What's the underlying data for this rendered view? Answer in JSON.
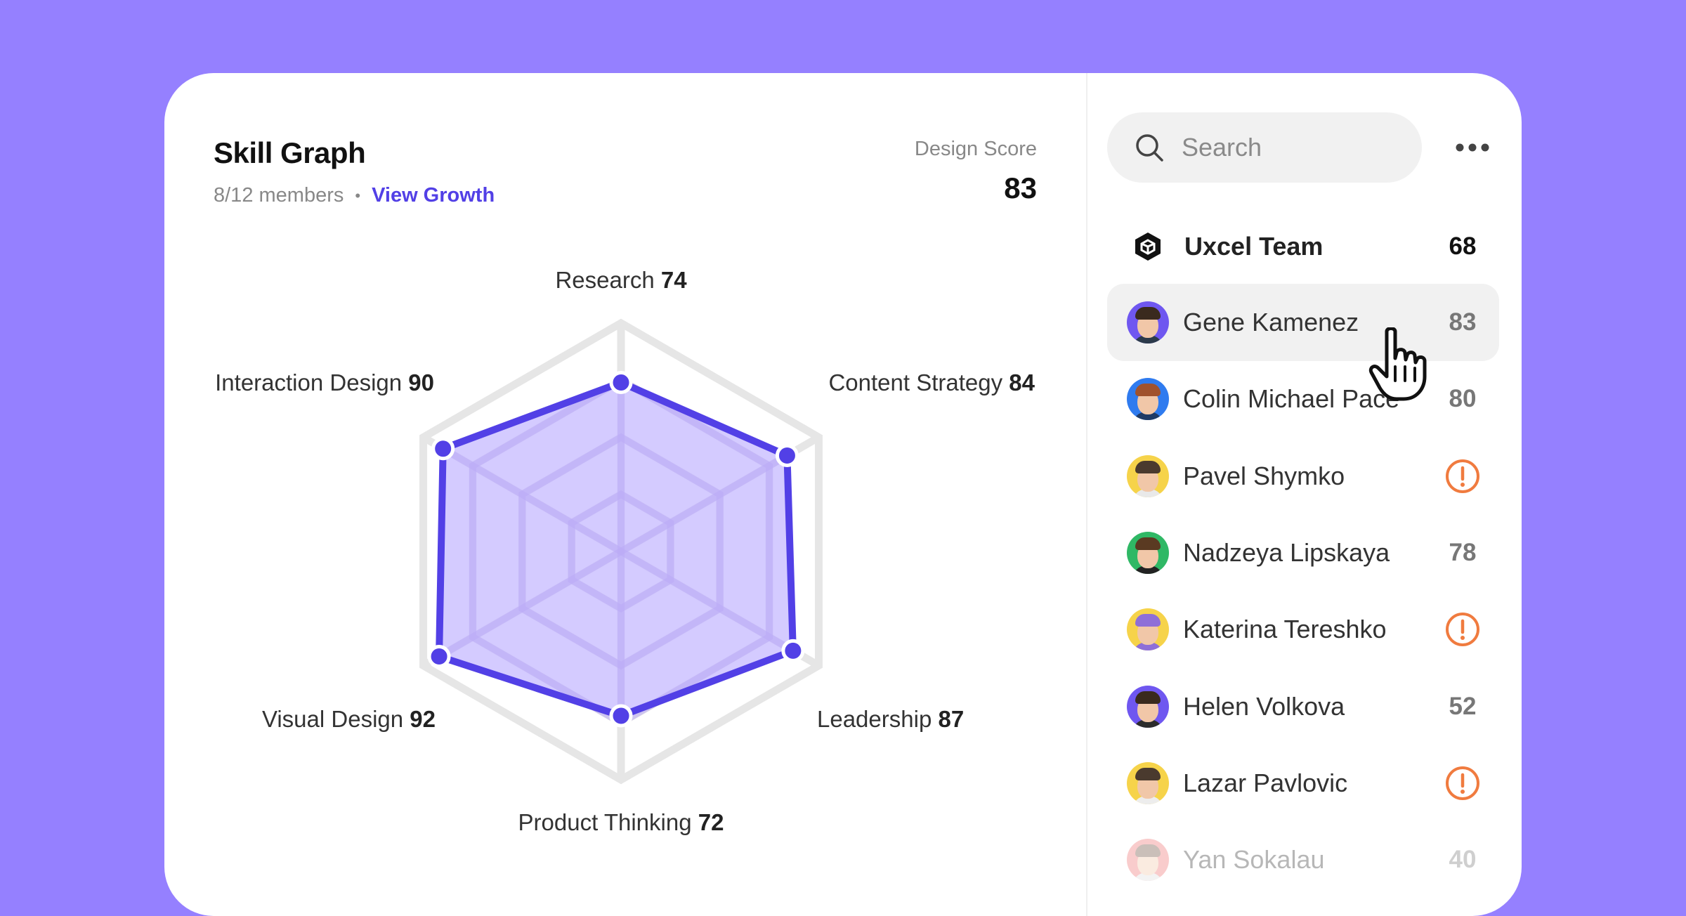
{
  "colors": {
    "background": "#9580FF",
    "accent": "#5240E6",
    "fill": "#C8BCFF",
    "grid": "#E6E6E6",
    "alert": "#F07B3F"
  },
  "header": {
    "title": "Skill Graph",
    "members": "8/12 members",
    "separator": "•",
    "link": "View Growth",
    "score_label": "Design Score",
    "score_value": "83"
  },
  "chart_data": {
    "type": "radar",
    "axes": [
      {
        "label": "Research",
        "value": 74
      },
      {
        "label": "Content Strategy",
        "value": 84
      },
      {
        "label": "Leadership",
        "value": 87
      },
      {
        "label": "Product Thinking",
        "value": 72
      },
      {
        "label": "Visual Design",
        "value": 92
      },
      {
        "label": "Interaction Design",
        "value": 90
      }
    ],
    "max": 100,
    "rings": 4
  },
  "search": {
    "placeholder": "Search",
    "icon": "search-icon"
  },
  "menu": {
    "icon": "more-dots-icon"
  },
  "team": {
    "name": "Uxcel Team",
    "score": "68",
    "icon": "uxcel-logo-icon"
  },
  "members": [
    {
      "name": "Gene Kamenez",
      "score": "83",
      "alert": false,
      "active": true,
      "faded": false,
      "bg": "#6F57F0",
      "hair": "#3A2A1E",
      "shirt": "#2C3A4A"
    },
    {
      "name": "Colin Michael Pace",
      "score": "80",
      "alert": false,
      "active": false,
      "faded": false,
      "bg": "#2F7BEF",
      "hair": "#A0522D",
      "shirt": "#1F3B66"
    },
    {
      "name": "Pavel Shymko",
      "score": "",
      "alert": true,
      "active": false,
      "faded": false,
      "bg": "#F6D34A",
      "hair": "#4A3A2E",
      "shirt": "#E9E9E9"
    },
    {
      "name": "Nadzeya Lipskaya",
      "score": "78",
      "alert": false,
      "active": false,
      "faded": false,
      "bg": "#2FB865",
      "hair": "#5A3A22",
      "shirt": "#222222"
    },
    {
      "name": "Katerina Tereshko",
      "score": "",
      "alert": true,
      "active": false,
      "faded": false,
      "bg": "#F6D34A",
      "hair": "#8E6FD8",
      "shirt": "#8E6FD8"
    },
    {
      "name": "Helen Volkova",
      "score": "52",
      "alert": false,
      "active": false,
      "faded": false,
      "bg": "#6F57F0",
      "hair": "#3A2A1E",
      "shirt": "#2C2C2C"
    },
    {
      "name": "Lazar Pavlovic",
      "score": "",
      "alert": true,
      "active": false,
      "faded": false,
      "bg": "#F6D34A",
      "hair": "#4A3A2E",
      "shirt": "#EDEDED"
    },
    {
      "name": "Yan Sokalau",
      "score": "40",
      "alert": false,
      "active": false,
      "faded": true,
      "bg": "#F07070",
      "hair": "#6A4A3A",
      "shirt": "#DDDDDD"
    }
  ]
}
